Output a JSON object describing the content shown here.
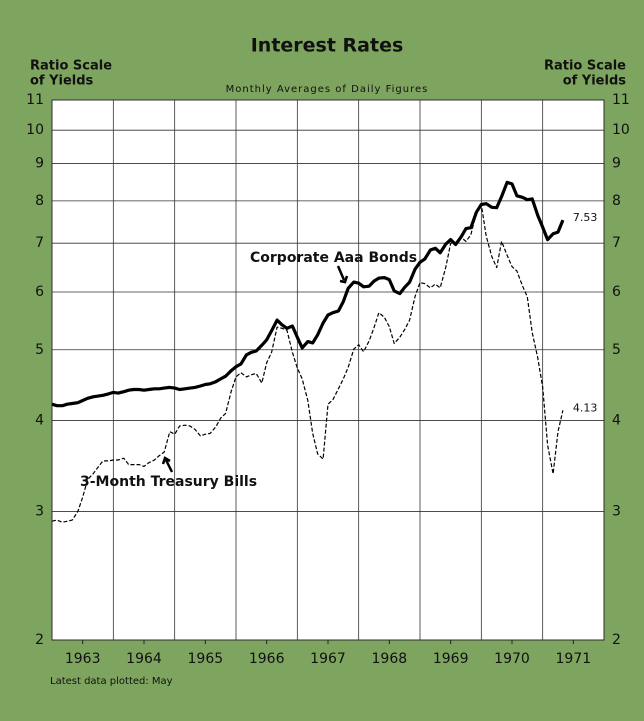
{
  "chart_data": {
    "type": "line",
    "title": "Interest Rates",
    "subtitle": "Monthly Averages of Daily Figures",
    "ylabel": [
      "Ratio Scale",
      "of Yields"
    ],
    "y2label": [
      "Ratio Scale",
      "of Yields"
    ],
    "footnote": "Latest data plotted: May",
    "log_scale": true,
    "grid": true,
    "ylim": [
      2,
      11
    ],
    "yticks": [
      2,
      3,
      4,
      5,
      6,
      7,
      8,
      9,
      10,
      11
    ],
    "y2lim": [
      2,
      11
    ],
    "y2ticks": [
      2,
      3,
      4,
      5,
      6,
      7,
      8,
      9,
      10,
      11
    ],
    "xlim": [
      1963,
      1972
    ],
    "xticks": [
      {
        "value": 1963.5,
        "label": "1963"
      },
      {
        "value": 1964.5,
        "label": "1964"
      },
      {
        "value": 1965.5,
        "label": "1965"
      },
      {
        "value": 1966.5,
        "label": "1966"
      },
      {
        "value": 1967.5,
        "label": "1967"
      },
      {
        "value": 1968.5,
        "label": "1968"
      },
      {
        "value": 1969.5,
        "label": "1969"
      },
      {
        "value": 1970.5,
        "label": "1970"
      },
      {
        "value": 1971.5,
        "label": "1971"
      }
    ],
    "x_gridlines": [
      1963,
      1964,
      1965,
      1966,
      1967,
      1968,
      1969,
      1970,
      1971,
      1972
    ],
    "x": [
      1963,
      1963.08,
      1963.17,
      1963.25,
      1963.33,
      1963.42,
      1963.5,
      1963.58,
      1963.67,
      1963.75,
      1963.83,
      1963.92,
      1964,
      1964.08,
      1964.17,
      1964.25,
      1964.33,
      1964.42,
      1964.5,
      1964.58,
      1964.67,
      1964.75,
      1964.83,
      1964.92,
      1965,
      1965.08,
      1965.17,
      1965.25,
      1965.33,
      1965.42,
      1965.5,
      1965.58,
      1965.67,
      1965.75,
      1965.83,
      1965.92,
      1966,
      1966.08,
      1966.17,
      1966.25,
      1966.33,
      1966.42,
      1966.5,
      1966.58,
      1966.67,
      1966.75,
      1966.83,
      1966.92,
      1967,
      1967.08,
      1967.17,
      1967.25,
      1967.33,
      1967.42,
      1967.5,
      1967.58,
      1967.67,
      1967.75,
      1967.83,
      1967.92,
      1968,
      1968.08,
      1968.17,
      1968.25,
      1968.33,
      1968.42,
      1968.5,
      1968.58,
      1968.67,
      1968.75,
      1968.83,
      1968.92,
      1969,
      1969.08,
      1969.17,
      1969.25,
      1969.33,
      1969.42,
      1969.5,
      1969.58,
      1969.67,
      1969.75,
      1969.83,
      1969.92,
      1970,
      1970.08,
      1970.17,
      1970.25,
      1970.33,
      1970.42,
      1970.5,
      1970.58,
      1970.67,
      1970.75,
      1970.83,
      1970.92,
      1971,
      1971.08,
      1971.17,
      1971.25,
      1971.33
    ],
    "series": [
      {
        "name": "Corporate Aaa Bonds",
        "color": "#000000",
        "style": "solid",
        "end_label": "7.53",
        "values": [
          4.21,
          4.19,
          4.19,
          4.21,
          4.22,
          4.23,
          4.26,
          4.29,
          4.31,
          4.32,
          4.33,
          4.35,
          4.37,
          4.36,
          4.38,
          4.4,
          4.41,
          4.41,
          4.4,
          4.41,
          4.42,
          4.42,
          4.43,
          4.44,
          4.43,
          4.41,
          4.42,
          4.43,
          4.44,
          4.46,
          4.48,
          4.49,
          4.52,
          4.56,
          4.6,
          4.68,
          4.74,
          4.78,
          4.92,
          4.96,
          4.98,
          5.07,
          5.16,
          5.31,
          5.49,
          5.41,
          5.35,
          5.39,
          5.2,
          5.03,
          5.13,
          5.11,
          5.24,
          5.44,
          5.58,
          5.62,
          5.65,
          5.82,
          6.07,
          6.19,
          6.17,
          6.1,
          6.11,
          6.21,
          6.27,
          6.28,
          6.24,
          6.02,
          5.97,
          6.09,
          6.19,
          6.45,
          6.59,
          6.66,
          6.85,
          6.89,
          6.79,
          6.98,
          7.08,
          6.97,
          7.14,
          7.33,
          7.35,
          7.72,
          7.91,
          7.93,
          7.84,
          7.83,
          8.11,
          8.48,
          8.44,
          8.13,
          8.09,
          8.03,
          8.05,
          7.64,
          7.36,
          7.08,
          7.21,
          7.25,
          7.53
        ]
      },
      {
        "name": "3-Month Treasury Bills",
        "color": "#000000",
        "style": "dashed",
        "end_label": "4.13",
        "values": [
          2.91,
          2.92,
          2.9,
          2.91,
          2.92,
          3.0,
          3.14,
          3.32,
          3.38,
          3.45,
          3.52,
          3.52,
          3.53,
          3.53,
          3.55,
          3.48,
          3.48,
          3.48,
          3.46,
          3.5,
          3.53,
          3.58,
          3.62,
          3.86,
          3.83,
          3.93,
          3.94,
          3.93,
          3.89,
          3.81,
          3.83,
          3.84,
          3.92,
          4.03,
          4.09,
          4.38,
          4.59,
          4.65,
          4.59,
          4.62,
          4.64,
          4.5,
          4.8,
          4.96,
          5.37,
          5.35,
          5.32,
          4.96,
          4.72,
          4.56,
          4.26,
          3.84,
          3.6,
          3.54,
          4.21,
          4.27,
          4.42,
          4.56,
          4.73,
          5.01,
          5.08,
          4.97,
          5.14,
          5.36,
          5.62,
          5.54,
          5.38,
          5.1,
          5.2,
          5.33,
          5.49,
          5.92,
          6.18,
          6.16,
          6.08,
          6.15,
          6.08,
          6.49,
          7.0,
          7.01,
          7.13,
          7.04,
          7.19,
          7.72,
          7.91,
          7.16,
          6.71,
          6.48,
          7.04,
          6.74,
          6.5,
          6.41,
          6.12,
          5.91,
          5.28,
          4.87,
          4.44,
          3.7,
          3.38,
          3.86,
          4.13
        ]
      }
    ]
  }
}
